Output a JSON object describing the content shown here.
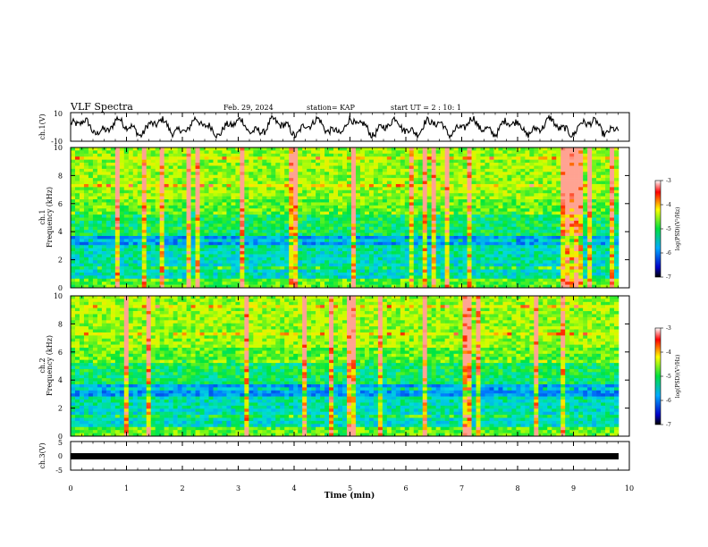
{
  "header": {
    "title": "VLF Spectra",
    "date": "Feb. 29, 2024",
    "station": "station= KAP",
    "start": "start  UT =  2 : 10: 1"
  },
  "chart_data": [
    {
      "type": "line",
      "panel": "ch1-waveform",
      "ylabel": "ch.1(V)",
      "ylim": [
        -10,
        10
      ],
      "yticks": [
        "10",
        "-10"
      ],
      "xlim": [
        0,
        10
      ]
    },
    {
      "type": "heatmap",
      "panel": "ch1-spectrogram",
      "ylabel_line1": "ch.1",
      "ylabel_line2": "Frequency (kHz)",
      "ylim": [
        0,
        10
      ],
      "yticks": [
        "0",
        "2",
        "4",
        "6",
        "8",
        "10"
      ],
      "xlim": [
        0,
        10
      ],
      "colorbar": {
        "range": [
          -7,
          -3
        ],
        "ticks": [
          "-3",
          "-4",
          "-5",
          "-6",
          "-7"
        ],
        "label": "log(PSD)(V²/Hz)"
      }
    },
    {
      "type": "heatmap",
      "panel": "ch2-spectrogram",
      "ylabel_line1": "ch.2",
      "ylabel_line2": "Frequency (kHz)",
      "ylim": [
        0,
        10
      ],
      "yticks": [
        "0",
        "2",
        "4",
        "6",
        "8",
        "10"
      ],
      "xlim": [
        0,
        10
      ],
      "colorbar": {
        "range": [
          -7,
          -3
        ],
        "ticks": [
          "-3",
          "-4",
          "-5",
          "-6",
          "-7"
        ],
        "label": "log(PSD)(V²/Hz)"
      }
    },
    {
      "type": "line",
      "panel": "ch3-waveform",
      "ylabel": "ch.3(V)",
      "ylim": [
        -5,
        5
      ],
      "yticks": [
        "5",
        "0",
        "-5"
      ],
      "xlim": [
        0,
        10
      ],
      "xlabel": "Time  (min)",
      "xticks": [
        "0",
        "1",
        "2",
        "3",
        "4",
        "5",
        "6",
        "7",
        "8",
        "9",
        "10"
      ]
    }
  ],
  "colors": {
    "axis": "#000000",
    "trace": "#000000",
    "background": "#ffffff"
  }
}
